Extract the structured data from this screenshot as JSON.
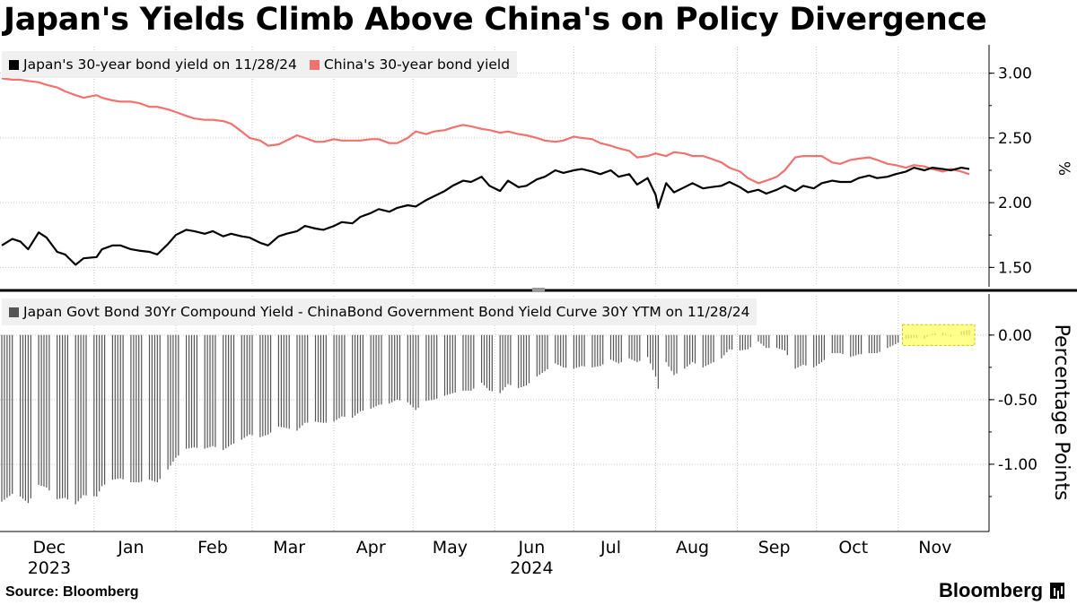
{
  "title": "Japan's Yields Climb Above China's on Policy Divergence",
  "source": "Source: Bloomberg",
  "brand": "Bloomberg",
  "colors": {
    "japan": "#000000",
    "china": "#f0716d",
    "spread": "#555555",
    "highlight": "#ffff66"
  },
  "chart_data": [
    {
      "type": "line",
      "legend_position": "top-left",
      "y_axis_label": "%",
      "ylim": [
        1.35,
        3.15
      ],
      "yticks": [
        1.5,
        2.0,
        2.5,
        3.0
      ],
      "ytick_labels": [
        "1.50",
        "2.00",
        "2.50",
        "3.00"
      ],
      "x_start": "2023-11-27",
      "x_end": "2024-11-28",
      "series": [
        {
          "name": "Japan's 30-year bond yield on 11/28/24",
          "color": "#000000",
          "points": [
            [
              "2023-11-27",
              1.67
            ],
            [
              "2023-12-01",
              1.72
            ],
            [
              "2023-12-04",
              1.7
            ],
            [
              "2023-12-07",
              1.64
            ],
            [
              "2023-12-11",
              1.77
            ],
            [
              "2023-12-14",
              1.73
            ],
            [
              "2023-12-18",
              1.62
            ],
            [
              "2023-12-21",
              1.6
            ],
            [
              "2023-12-25",
              1.52
            ],
            [
              "2023-12-28",
              1.57
            ],
            [
              "2024-01-02",
              1.58
            ],
            [
              "2024-01-04",
              1.64
            ],
            [
              "2024-01-08",
              1.67
            ],
            [
              "2024-01-11",
              1.67
            ],
            [
              "2024-01-15",
              1.64
            ],
            [
              "2024-01-18",
              1.63
            ],
            [
              "2024-01-22",
              1.62
            ],
            [
              "2024-01-25",
              1.6
            ],
            [
              "2024-01-29",
              1.68
            ],
            [
              "2024-02-01",
              1.75
            ],
            [
              "2024-02-05",
              1.79
            ],
            [
              "2024-02-08",
              1.78
            ],
            [
              "2024-02-12",
              1.76
            ],
            [
              "2024-02-15",
              1.78
            ],
            [
              "2024-02-19",
              1.74
            ],
            [
              "2024-02-22",
              1.76
            ],
            [
              "2024-02-26",
              1.74
            ],
            [
              "2024-02-29",
              1.73
            ],
            [
              "2024-03-04",
              1.69
            ],
            [
              "2024-03-07",
              1.67
            ],
            [
              "2024-03-11",
              1.74
            ],
            [
              "2024-03-14",
              1.76
            ],
            [
              "2024-03-18",
              1.78
            ],
            [
              "2024-03-21",
              1.82
            ],
            [
              "2024-03-25",
              1.8
            ],
            [
              "2024-03-28",
              1.79
            ],
            [
              "2024-04-01",
              1.82
            ],
            [
              "2024-04-04",
              1.85
            ],
            [
              "2024-04-08",
              1.84
            ],
            [
              "2024-04-11",
              1.89
            ],
            [
              "2024-04-15",
              1.92
            ],
            [
              "2024-04-18",
              1.95
            ],
            [
              "2024-04-22",
              1.93
            ],
            [
              "2024-04-25",
              1.96
            ],
            [
              "2024-04-29",
              1.98
            ],
            [
              "2024-05-02",
              1.97
            ],
            [
              "2024-05-06",
              2.02
            ],
            [
              "2024-05-09",
              2.05
            ],
            [
              "2024-05-13",
              2.09
            ],
            [
              "2024-05-16",
              2.13
            ],
            [
              "2024-05-20",
              2.17
            ],
            [
              "2024-05-23",
              2.16
            ],
            [
              "2024-05-27",
              2.2
            ],
            [
              "2024-05-30",
              2.13
            ],
            [
              "2024-06-03",
              2.09
            ],
            [
              "2024-06-06",
              2.17
            ],
            [
              "2024-06-10",
              2.12
            ],
            [
              "2024-06-13",
              2.13
            ],
            [
              "2024-06-17",
              2.18
            ],
            [
              "2024-06-20",
              2.2
            ],
            [
              "2024-06-24",
              2.25
            ],
            [
              "2024-06-27",
              2.23
            ],
            [
              "2024-07-01",
              2.25
            ],
            [
              "2024-07-04",
              2.26
            ],
            [
              "2024-07-08",
              2.24
            ],
            [
              "2024-07-11",
              2.22
            ],
            [
              "2024-07-15",
              2.25
            ],
            [
              "2024-07-18",
              2.2
            ],
            [
              "2024-07-22",
              2.22
            ],
            [
              "2024-07-25",
              2.14
            ],
            [
              "2024-07-29",
              2.19
            ],
            [
              "2024-08-01",
              2.06
            ],
            [
              "2024-08-02",
              1.96
            ],
            [
              "2024-08-05",
              2.15
            ],
            [
              "2024-08-08",
              2.08
            ],
            [
              "2024-08-12",
              2.12
            ],
            [
              "2024-08-15",
              2.15
            ],
            [
              "2024-08-19",
              2.11
            ],
            [
              "2024-08-22",
              2.12
            ],
            [
              "2024-08-26",
              2.13
            ],
            [
              "2024-08-29",
              2.16
            ],
            [
              "2024-09-02",
              2.12
            ],
            [
              "2024-09-05",
              2.08
            ],
            [
              "2024-09-09",
              2.1
            ],
            [
              "2024-09-12",
              2.07
            ],
            [
              "2024-09-16",
              2.1
            ],
            [
              "2024-09-19",
              2.13
            ],
            [
              "2024-09-23",
              2.09
            ],
            [
              "2024-09-26",
              2.13
            ],
            [
              "2024-09-30",
              2.11
            ],
            [
              "2024-10-03",
              2.15
            ],
            [
              "2024-10-07",
              2.17
            ],
            [
              "2024-10-10",
              2.16
            ],
            [
              "2024-10-14",
              2.16
            ],
            [
              "2024-10-17",
              2.19
            ],
            [
              "2024-10-21",
              2.21
            ],
            [
              "2024-10-24",
              2.19
            ],
            [
              "2024-10-28",
              2.2
            ],
            [
              "2024-10-31",
              2.22
            ],
            [
              "2024-11-04",
              2.24
            ],
            [
              "2024-11-07",
              2.27
            ],
            [
              "2024-11-11",
              2.25
            ],
            [
              "2024-11-14",
              2.27
            ],
            [
              "2024-11-18",
              2.26
            ],
            [
              "2024-11-21",
              2.25
            ],
            [
              "2024-11-25",
              2.27
            ],
            [
              "2024-11-28",
              2.26
            ]
          ]
        },
        {
          "name": "China's 30-year bond yield",
          "color": "#f0716d",
          "points": [
            [
              "2023-11-27",
              2.96
            ],
            [
              "2023-12-01",
              2.95
            ],
            [
              "2023-12-04",
              2.95
            ],
            [
              "2023-12-07",
              2.94
            ],
            [
              "2023-12-11",
              2.93
            ],
            [
              "2023-12-14",
              2.91
            ],
            [
              "2023-12-18",
              2.89
            ],
            [
              "2023-12-21",
              2.86
            ],
            [
              "2023-12-25",
              2.83
            ],
            [
              "2023-12-28",
              2.81
            ],
            [
              "2024-01-02",
              2.83
            ],
            [
              "2024-01-04",
              2.81
            ],
            [
              "2024-01-08",
              2.79
            ],
            [
              "2024-01-11",
              2.78
            ],
            [
              "2024-01-15",
              2.78
            ],
            [
              "2024-01-18",
              2.77
            ],
            [
              "2024-01-22",
              2.74
            ],
            [
              "2024-01-25",
              2.74
            ],
            [
              "2024-01-29",
              2.72
            ],
            [
              "2024-02-01",
              2.7
            ],
            [
              "2024-02-05",
              2.67
            ],
            [
              "2024-02-08",
              2.65
            ],
            [
              "2024-02-12",
              2.64
            ],
            [
              "2024-02-15",
              2.64
            ],
            [
              "2024-02-19",
              2.63
            ],
            [
              "2024-02-22",
              2.61
            ],
            [
              "2024-02-26",
              2.55
            ],
            [
              "2024-02-29",
              2.5
            ],
            [
              "2024-03-04",
              2.48
            ],
            [
              "2024-03-07",
              2.44
            ],
            [
              "2024-03-11",
              2.45
            ],
            [
              "2024-03-14",
              2.48
            ],
            [
              "2024-03-18",
              2.52
            ],
            [
              "2024-03-21",
              2.5
            ],
            [
              "2024-03-25",
              2.47
            ],
            [
              "2024-03-28",
              2.47
            ],
            [
              "2024-04-01",
              2.49
            ],
            [
              "2024-04-04",
              2.48
            ],
            [
              "2024-04-08",
              2.48
            ],
            [
              "2024-04-11",
              2.48
            ],
            [
              "2024-04-15",
              2.49
            ],
            [
              "2024-04-18",
              2.49
            ],
            [
              "2024-04-22",
              2.46
            ],
            [
              "2024-04-25",
              2.46
            ],
            [
              "2024-04-29",
              2.5
            ],
            [
              "2024-05-02",
              2.55
            ],
            [
              "2024-05-06",
              2.53
            ],
            [
              "2024-05-09",
              2.55
            ],
            [
              "2024-05-13",
              2.56
            ],
            [
              "2024-05-16",
              2.58
            ],
            [
              "2024-05-20",
              2.6
            ],
            [
              "2024-05-23",
              2.59
            ],
            [
              "2024-05-27",
              2.57
            ],
            [
              "2024-05-30",
              2.56
            ],
            [
              "2024-06-03",
              2.54
            ],
            [
              "2024-06-06",
              2.55
            ],
            [
              "2024-06-10",
              2.53
            ],
            [
              "2024-06-13",
              2.52
            ],
            [
              "2024-06-17",
              2.5
            ],
            [
              "2024-06-20",
              2.48
            ],
            [
              "2024-06-24",
              2.47
            ],
            [
              "2024-06-27",
              2.48
            ],
            [
              "2024-07-01",
              2.51
            ],
            [
              "2024-07-04",
              2.5
            ],
            [
              "2024-07-08",
              2.49
            ],
            [
              "2024-07-11",
              2.46
            ],
            [
              "2024-07-15",
              2.44
            ],
            [
              "2024-07-18",
              2.42
            ],
            [
              "2024-07-22",
              2.4
            ],
            [
              "2024-07-25",
              2.35
            ],
            [
              "2024-07-29",
              2.36
            ],
            [
              "2024-08-01",
              2.38
            ],
            [
              "2024-08-05",
              2.36
            ],
            [
              "2024-08-08",
              2.39
            ],
            [
              "2024-08-12",
              2.38
            ],
            [
              "2024-08-15",
              2.36
            ],
            [
              "2024-08-19",
              2.36
            ],
            [
              "2024-08-22",
              2.34
            ],
            [
              "2024-08-26",
              2.31
            ],
            [
              "2024-08-29",
              2.27
            ],
            [
              "2024-09-02",
              2.24
            ],
            [
              "2024-09-05",
              2.19
            ],
            [
              "2024-09-09",
              2.15
            ],
            [
              "2024-09-12",
              2.17
            ],
            [
              "2024-09-16",
              2.2
            ],
            [
              "2024-09-19",
              2.25
            ],
            [
              "2024-09-23",
              2.35
            ],
            [
              "2024-09-26",
              2.36
            ],
            [
              "2024-09-30",
              2.36
            ],
            [
              "2024-10-03",
              2.36
            ],
            [
              "2024-10-07",
              2.31
            ],
            [
              "2024-10-10",
              2.3
            ],
            [
              "2024-10-14",
              2.33
            ],
            [
              "2024-10-17",
              2.34
            ],
            [
              "2024-10-21",
              2.35
            ],
            [
              "2024-10-24",
              2.33
            ],
            [
              "2024-10-28",
              2.3
            ],
            [
              "2024-10-31",
              2.29
            ],
            [
              "2024-11-04",
              2.27
            ],
            [
              "2024-11-07",
              2.29
            ],
            [
              "2024-11-11",
              2.28
            ],
            [
              "2024-11-14",
              2.26
            ],
            [
              "2024-11-18",
              2.24
            ],
            [
              "2024-11-21",
              2.26
            ],
            [
              "2024-11-25",
              2.24
            ],
            [
              "2024-11-28",
              2.22
            ]
          ]
        }
      ]
    },
    {
      "type": "bar",
      "legend_position": "top-left",
      "y_axis_label": "Percentage Points",
      "ylim": [
        -1.5,
        0.2
      ],
      "yticks": [
        -1.0,
        -0.5,
        0.0
      ],
      "ytick_labels": [
        "-1.00",
        "-0.50",
        "0.00"
      ],
      "series": [
        {
          "name": "Japan Govt Bond 30Yr Compound Yield - ChinaBond Government Bond Yield Curve 30Y YTM on 11/28/24",
          "color": "#555555",
          "derived_from": "Japan minus China daily",
          "highlight_range": [
            "2024-11-04",
            "2024-11-28"
          ]
        }
      ]
    }
  ],
  "x_axis": {
    "ticks": [
      {
        "date": "2023-12-15",
        "label": "Dec",
        "year": "2023"
      },
      {
        "date": "2024-01-15",
        "label": "Jan",
        "year": ""
      },
      {
        "date": "2024-02-15",
        "label": "Feb",
        "year": ""
      },
      {
        "date": "2024-03-15",
        "label": "Mar",
        "year": ""
      },
      {
        "date": "2024-04-15",
        "label": "Apr",
        "year": ""
      },
      {
        "date": "2024-05-15",
        "label": "May",
        "year": ""
      },
      {
        "date": "2024-06-15",
        "label": "Jun",
        "year": "2024"
      },
      {
        "date": "2024-07-15",
        "label": "Jul",
        "year": ""
      },
      {
        "date": "2024-08-15",
        "label": "Aug",
        "year": ""
      },
      {
        "date": "2024-09-15",
        "label": "Sep",
        "year": ""
      },
      {
        "date": "2024-10-15",
        "label": "Oct",
        "year": ""
      },
      {
        "date": "2024-11-15",
        "label": "Nov",
        "year": ""
      }
    ],
    "gridlines": [
      "2024-01-01",
      "2024-02-01",
      "2024-03-01",
      "2024-04-01",
      "2024-05-01",
      "2024-06-01",
      "2024-07-01",
      "2024-08-01",
      "2024-09-01",
      "2024-10-01",
      "2024-11-01"
    ]
  }
}
